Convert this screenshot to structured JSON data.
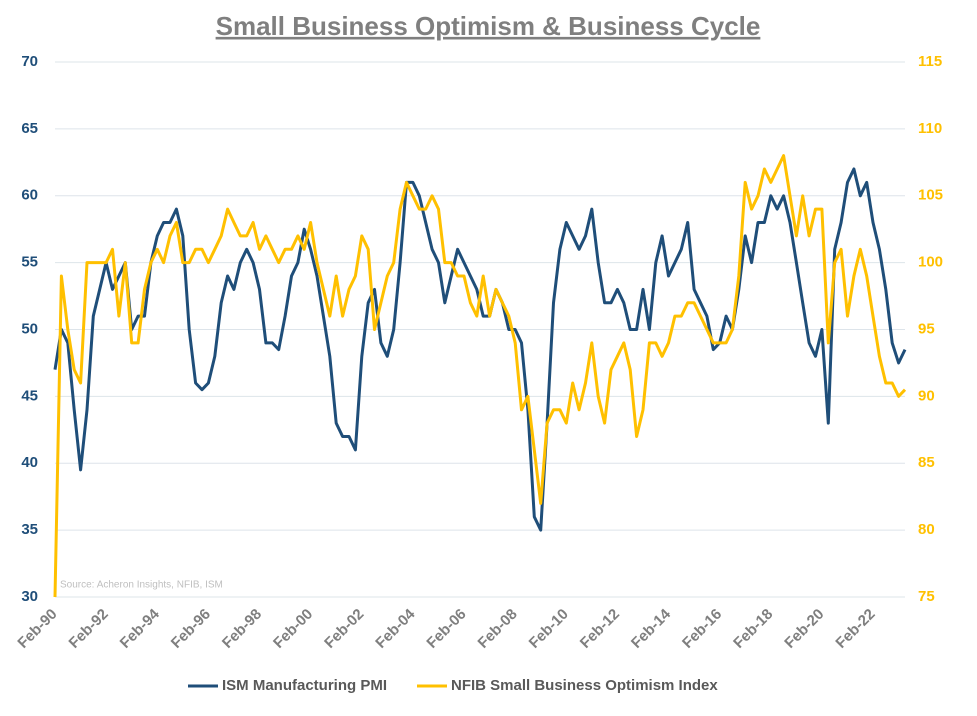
{
  "chart_data": {
    "type": "line",
    "title": "Small Business Optimism & Business Cycle",
    "source": "Source: Acheron Insights, NFIB, ISM",
    "categories": [
      "Feb-90",
      null,
      null,
      null,
      null,
      null,
      null,
      null,
      "Feb-92",
      null,
      null,
      null,
      null,
      null,
      null,
      null,
      "Feb-94",
      null,
      null,
      null,
      null,
      null,
      null,
      null,
      "Feb-96",
      null,
      null,
      null,
      null,
      null,
      null,
      null,
      "Feb-98",
      null,
      null,
      null,
      null,
      null,
      null,
      null,
      "Feb-00",
      null,
      null,
      null,
      null,
      null,
      null,
      null,
      "Feb-02",
      null,
      null,
      null,
      null,
      null,
      null,
      null,
      "Feb-04",
      null,
      null,
      null,
      null,
      null,
      null,
      null,
      "Feb-06",
      null,
      null,
      null,
      null,
      null,
      null,
      null,
      "Feb-08",
      null,
      null,
      null,
      null,
      null,
      null,
      null,
      "Feb-10",
      null,
      null,
      null,
      null,
      null,
      null,
      null,
      "Feb-12",
      null,
      null,
      null,
      null,
      null,
      null,
      null,
      "Feb-14",
      null,
      null,
      null,
      null,
      null,
      null,
      null,
      "Feb-16",
      null,
      null,
      null,
      null,
      null,
      null,
      null,
      "Feb-18",
      null,
      null,
      null,
      null,
      null,
      null,
      null,
      "Feb-20",
      null,
      null,
      null,
      null,
      null,
      null,
      null,
      "Feb-22",
      null,
      null,
      null,
      null,
      null
    ],
    "series": [
      {
        "name": "ISM Manufacturing PMI",
        "color": "#1f4e79",
        "axis": "y",
        "values": [
          47,
          50,
          49,
          44,
          39.5,
          44,
          51,
          53,
          55,
          53,
          54,
          55,
          50,
          51,
          51,
          55,
          57,
          58,
          58,
          59,
          57,
          50,
          46,
          45.5,
          46,
          48,
          52,
          54,
          53,
          55,
          56,
          55,
          53,
          49,
          49,
          48.5,
          51,
          54,
          55,
          57.5,
          56,
          54,
          51,
          48,
          43,
          42,
          42,
          41,
          48,
          52,
          53,
          49,
          48,
          50,
          55,
          61,
          61,
          60,
          58,
          56,
          55,
          52,
          54,
          56,
          55,
          54,
          53,
          51,
          51,
          53,
          52,
          50,
          50,
          49,
          44,
          36,
          35,
          43,
          52,
          56,
          58,
          57,
          56,
          57,
          59,
          55,
          52,
          52,
          53,
          52,
          50,
          50,
          53,
          50,
          55,
          57,
          54,
          55,
          56,
          58,
          53,
          52,
          51,
          48.5,
          49,
          51,
          50,
          53,
          57,
          55,
          58,
          58,
          60,
          59,
          60,
          58,
          55,
          52,
          49,
          48,
          50,
          43,
          56,
          58,
          61,
          62,
          60,
          61,
          58,
          56,
          53,
          49,
          47.5,
          48.5
        ]
      },
      {
        "name": "NFIB Small Business Optimism Index",
        "color": "#ffc000",
        "axis": "y2",
        "values": [
          75,
          99,
          95,
          92,
          91,
          100,
          100,
          100,
          100,
          101,
          96,
          100,
          94,
          94,
          98,
          100,
          101,
          100,
          102,
          103,
          100,
          100,
          101,
          101,
          100,
          101,
          102,
          104,
          103,
          102,
          102,
          103,
          101,
          102,
          101,
          100,
          101,
          101,
          102,
          101,
          103,
          100,
          98,
          96,
          99,
          96,
          98,
          99,
          102,
          101,
          95,
          97,
          99,
          100,
          104,
          106,
          105,
          104,
          104,
          105,
          104,
          100,
          100,
          99,
          99,
          97,
          96,
          99,
          96,
          98,
          97,
          96,
          94,
          89,
          90,
          86,
          82,
          88,
          89,
          89,
          88,
          91,
          89,
          91,
          94,
          90,
          88,
          92,
          93,
          94,
          92,
          87,
          89,
          94,
          94,
          93,
          94,
          96,
          96,
          97,
          97,
          96,
          95,
          94,
          94,
          94,
          95,
          99,
          106,
          104,
          105,
          107,
          106,
          107,
          108,
          105,
          102,
          105,
          102,
          104,
          104,
          94,
          100,
          101,
          96,
          99,
          101,
          99,
          96,
          93,
          91,
          91,
          90,
          90.5
        ]
      }
    ],
    "ylim": [
      30,
      70
    ],
    "yticks": [
      30,
      35,
      40,
      45,
      50,
      55,
      60,
      65,
      70
    ],
    "y2lim": [
      75,
      115
    ],
    "y2ticks": [
      75,
      80,
      85,
      90,
      95,
      100,
      105,
      110,
      115
    ],
    "grid": true
  }
}
